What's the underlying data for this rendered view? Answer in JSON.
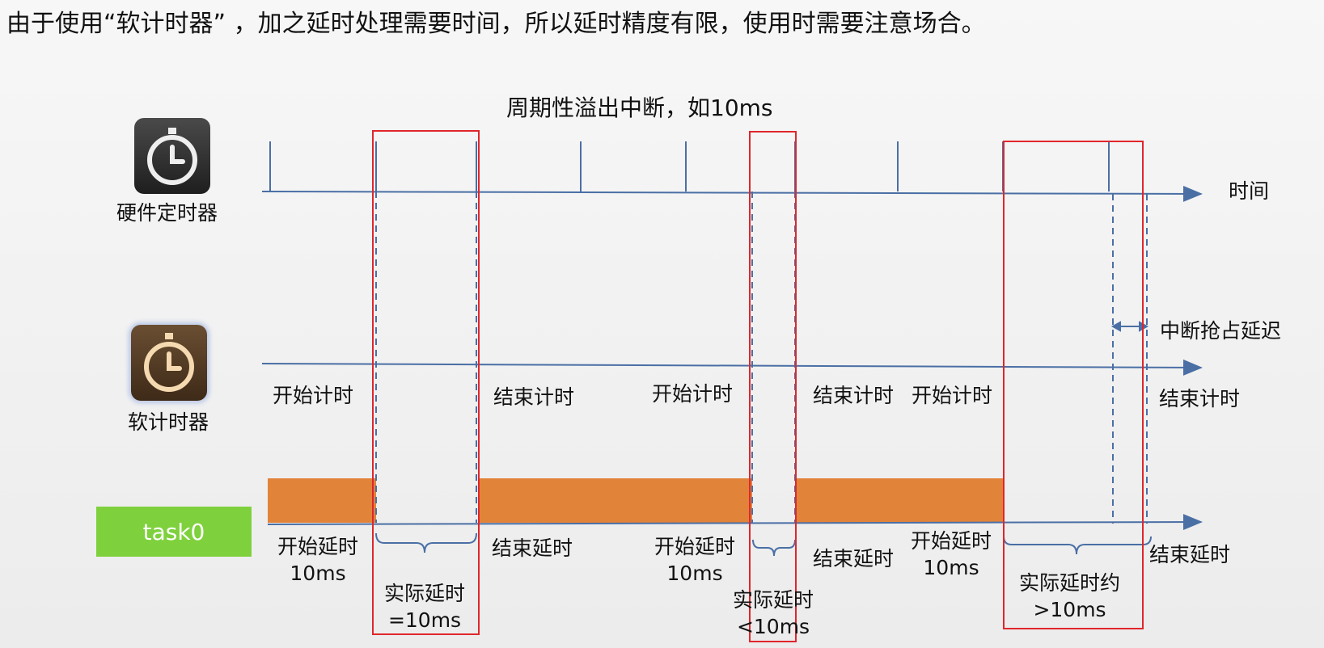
{
  "heading": "由于使用“软计时器” ，加之延时处理需要时间，所以延时精度有限，使用时需要注意场合。",
  "period_label": "周期性溢出中断，如10ms",
  "time_label": "时间",
  "hw_timer_label": "硬件定时器",
  "sw_timer_label": "软计时器",
  "task_label": "task0",
  "preempt_label": "中断抢占延迟",
  "sw_events": [
    "开始计时",
    "结束计时",
    "开始计时",
    "结束计时",
    "开始计时",
    "结束计时"
  ],
  "task_events": {
    "start1": [
      "开始延时",
      "10ms"
    ],
    "end1": "结束延时",
    "start2": [
      "开始延时",
      "10ms"
    ],
    "end2": "结束延时",
    "start3": [
      "开始延时",
      "10ms"
    ],
    "end3": "结束延时"
  },
  "actual_delays": [
    [
      "实际延时",
      "=10ms"
    ],
    [
      "实际延时",
      "<10ms"
    ],
    [
      "实际延时约",
      ">10ms"
    ]
  ],
  "colors": {
    "axis": "#4a6fa5",
    "highlight": "#e0262b",
    "task_bar": "#e2833a",
    "task_label_bg": "#7ed13c"
  }
}
